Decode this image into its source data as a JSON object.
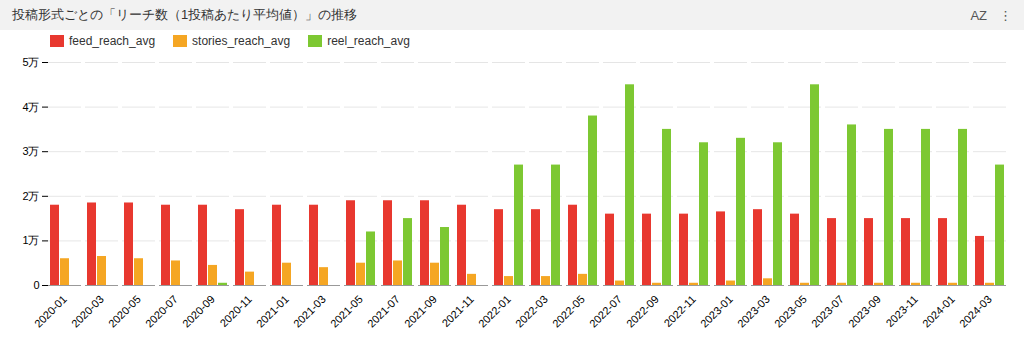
{
  "chart_data": {
    "type": "bar",
    "title": "投稿形式ごとの「リーチ数（1投稿あたり平均値）」の推移",
    "annotations": [
      "AZ",
      "⋮"
    ],
    "categories": [
      "2020-01",
      "2020-03",
      "2020-05",
      "2020-07",
      "2020-09",
      "2020-11",
      "2021-01",
      "2021-03",
      "2021-05",
      "2021-07",
      "2021-09",
      "2021-11",
      "2022-01",
      "2022-03",
      "2022-05",
      "2022-07",
      "2022-09",
      "2022-11",
      "2023-01",
      "2023-03",
      "2023-05",
      "2023-07",
      "2023-09",
      "2023-11",
      "2024-01",
      "2024-03"
    ],
    "series": [
      {
        "name": "feed_reach_avg",
        "color": "#e8382f",
        "values": [
          18000,
          18500,
          18500,
          18000,
          18000,
          17000,
          18000,
          18000,
          19000,
          19000,
          19000,
          18000,
          17000,
          17000,
          18000,
          16000,
          16000,
          16000,
          16500,
          17000,
          16000,
          15000,
          15000,
          15000,
          15000,
          11000
        ]
      },
      {
        "name": "stories_reach_avg",
        "color": "#f5a623",
        "values": [
          6000,
          6500,
          6000,
          5500,
          4500,
          3000,
          5000,
          4000,
          5000,
          5500,
          5000,
          2500,
          2000,
          2000,
          2500,
          1000,
          500,
          500,
          1000,
          1500,
          500,
          500,
          500,
          500,
          500,
          500
        ]
      },
      {
        "name": "reel_reach_avg",
        "color": "#7dc832",
        "values": [
          0,
          0,
          0,
          0,
          500,
          0,
          0,
          0,
          12000,
          15000,
          13000,
          0,
          27000,
          27000,
          38000,
          45000,
          35000,
          32000,
          33000,
          32000,
          45000,
          36000,
          35000,
          35000,
          35000,
          27000
        ]
      }
    ],
    "ylim": [
      0,
      50000
    ],
    "yticks": [
      0,
      {
        "value": 10000,
        "label": "1万"
      },
      {
        "value": 20000,
        "label": "2万"
      },
      {
        "value": 30000,
        "label": "3万"
      },
      {
        "value": 40000,
        "label": "4万"
      },
      {
        "value": 50000,
        "label": "5万"
      }
    ],
    "grid": true,
    "legend": "upper left"
  }
}
